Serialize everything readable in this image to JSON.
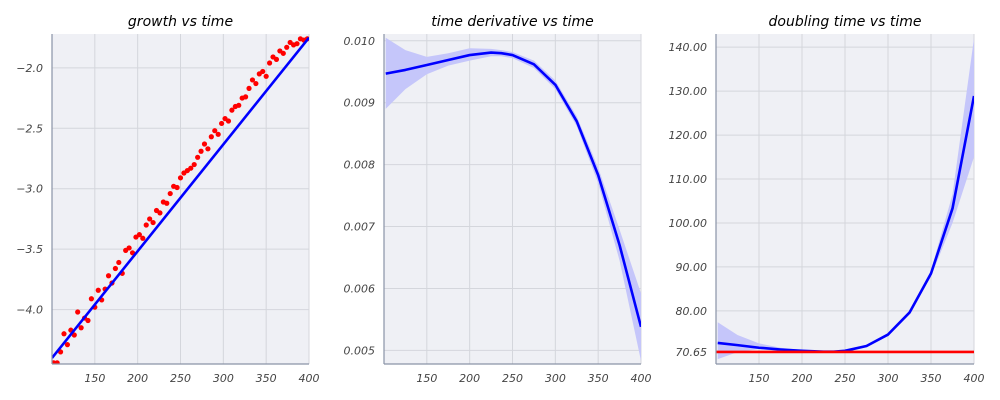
{
  "figure": {
    "background": "#ffffff",
    "axes_background": "#eff0f5",
    "grid_color": "#d4d6dc",
    "spine_color": "#8a93a6"
  },
  "chart_data": [
    {
      "type": "scatter",
      "title": "growth vs time",
      "xlabel": "",
      "ylabel": "",
      "xlim": [
        100,
        400
      ],
      "ylim": [
        -4.45,
        -1.72
      ],
      "xticks": [
        150,
        200,
        250,
        300,
        350,
        400
      ],
      "yticks": [
        -4.0,
        -3.5,
        -3.0,
        -2.5,
        -2.0
      ],
      "ytick_labels": [
        "−4.0",
        "−3.5",
        "−3.0",
        "−2.5",
        "−2.0"
      ],
      "grid": true,
      "points": {
        "color": "#ff0000",
        "x": [
          102,
          106,
          110,
          114,
          118,
          122,
          126,
          130,
          134,
          138,
          142,
          146,
          150,
          154,
          158,
          162,
          166,
          170,
          174,
          178,
          182,
          186,
          190,
          194,
          198,
          202,
          206,
          210,
          214,
          218,
          222,
          226,
          230,
          234,
          238,
          242,
          246,
          250,
          254,
          258,
          262,
          266,
          270,
          274,
          278,
          282,
          286,
          290,
          294,
          298,
          302,
          306,
          310,
          314,
          318,
          322,
          326,
          330,
          334,
          338,
          342,
          346,
          350,
          354,
          358,
          362,
          366,
          370,
          374,
          378,
          382,
          386,
          390,
          394,
          398
        ],
        "y": [
          -4.44,
          -4.44,
          -4.35,
          -4.2,
          -4.29,
          -4.17,
          -4.21,
          -4.02,
          -4.15,
          -4.07,
          -4.09,
          -3.91,
          -3.98,
          -3.84,
          -3.92,
          -3.83,
          -3.72,
          -3.78,
          -3.66,
          -3.61,
          -3.7,
          -3.51,
          -3.49,
          -3.53,
          -3.4,
          -3.38,
          -3.41,
          -3.3,
          -3.25,
          -3.28,
          -3.18,
          -3.2,
          -3.11,
          -3.12,
          -3.04,
          -2.98,
          -2.99,
          -2.91,
          -2.87,
          -2.85,
          -2.83,
          -2.8,
          -2.74,
          -2.69,
          -2.63,
          -2.67,
          -2.57,
          -2.52,
          -2.55,
          -2.46,
          -2.42,
          -2.44,
          -2.35,
          -2.32,
          -2.31,
          -2.25,
          -2.24,
          -2.17,
          -2.1,
          -2.13,
          -2.05,
          -2.03,
          -2.07,
          -1.96,
          -1.91,
          -1.93,
          -1.86,
          -1.88,
          -1.83,
          -1.79,
          -1.81,
          -1.8,
          -1.76,
          -1.77,
          -1.76
        ]
      },
      "fit_line": {
        "color": "#0000ff",
        "x": [
          100,
          400
        ],
        "y": [
          -4.4,
          -1.75
        ]
      }
    },
    {
      "type": "line",
      "title": "time derivative vs time",
      "xlabel": "",
      "ylabel": "",
      "xlim": [
        100,
        400
      ],
      "ylim": [
        0.00478,
        0.01011
      ],
      "xticks": [
        150,
        200,
        250,
        300,
        350,
        400
      ],
      "yticks": [
        0.005,
        0.006,
        0.007,
        0.008,
        0.009,
        0.01
      ],
      "ytick_labels": [
        "0.005",
        "0.006",
        "0.007",
        "0.008",
        "0.009",
        "0.010"
      ],
      "grid": true,
      "series": [
        {
          "color": "#0000ff",
          "band_color": "#c5c6fa",
          "x": [
            102,
            125,
            150,
            175,
            200,
            225,
            237,
            250,
            275,
            300,
            325,
            350,
            375,
            400
          ],
          "y": [
            0.00947,
            0.00953,
            0.00961,
            0.00969,
            0.00977,
            0.00981,
            0.0098,
            0.00977,
            0.00962,
            0.00929,
            0.0087,
            0.00783,
            0.0067,
            0.00538
          ],
          "upper": [
            0.01005,
            0.00985,
            0.00974,
            0.0098,
            0.00988,
            0.00987,
            0.00985,
            0.00982,
            0.00968,
            0.00936,
            0.00878,
            0.00795,
            0.00695,
            0.00592
          ],
          "lower": [
            0.0089,
            0.00922,
            0.00946,
            0.0096,
            0.00968,
            0.00975,
            0.00975,
            0.00972,
            0.00956,
            0.00922,
            0.00862,
            0.0077,
            0.00645,
            0.00483
          ]
        }
      ]
    },
    {
      "type": "line",
      "title": "doubling time vs time",
      "xlabel": "",
      "ylabel": "",
      "xlim": [
        100,
        400
      ],
      "ylim": [
        67.9,
        143.0
      ],
      "xticks": [
        150,
        200,
        250,
        300,
        350,
        400
      ],
      "yticks": [
        70.65,
        80,
        90,
        100,
        110,
        120,
        130,
        140
      ],
      "ytick_labels": [
        "70.65",
        "80.00",
        "90.00",
        "100.00",
        "110.00",
        "120.00",
        "130.00",
        "140.00"
      ],
      "grid": true,
      "series": [
        {
          "color": "#0000ff",
          "band_color": "#c5c6fa",
          "x": [
            102,
            125,
            150,
            175,
            200,
            225,
            237,
            250,
            275,
            300,
            325,
            350,
            375,
            400
          ],
          "y": [
            72.7,
            72.2,
            71.6,
            71.2,
            70.9,
            70.7,
            70.7,
            70.9,
            72.0,
            74.6,
            79.6,
            88.5,
            103.3,
            128.9
          ],
          "upper": [
            77.4,
            74.5,
            72.6,
            71.6,
            71.1,
            70.9,
            70.9,
            71.1,
            72.2,
            74.9,
            80.0,
            89.2,
            106.5,
            142.0
          ],
          "lower": [
            69.0,
            70.6,
            71.3,
            70.8,
            70.5,
            70.5,
            70.6,
            70.8,
            71.8,
            74.3,
            79.3,
            87.8,
            100.0,
            115.0
          ]
        }
      ],
      "reference_line": {
        "color": "#ff0000",
        "y": 70.65
      }
    }
  ]
}
